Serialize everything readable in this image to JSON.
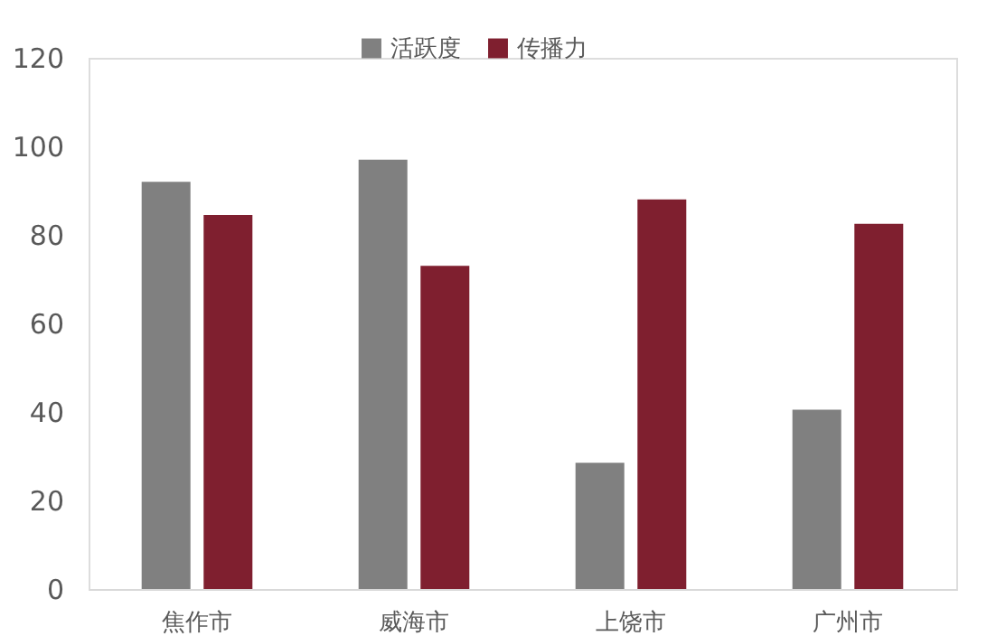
{
  "chart_data": {
    "type": "bar",
    "categories": [
      "焦作市",
      "威海市",
      "上饶市",
      "广州市"
    ],
    "series": [
      {
        "name": "活跃度",
        "color": "#808080",
        "values": [
          92,
          97,
          28.5,
          40.5
        ]
      },
      {
        "name": "传播力",
        "color": "#7f1f2f",
        "values": [
          84.5,
          73,
          88,
          82.5
        ]
      }
    ],
    "ylim": [
      0,
      120
    ],
    "yticks": [
      0,
      20,
      40,
      60,
      80,
      100,
      120
    ],
    "grid": false,
    "legend": "top"
  }
}
